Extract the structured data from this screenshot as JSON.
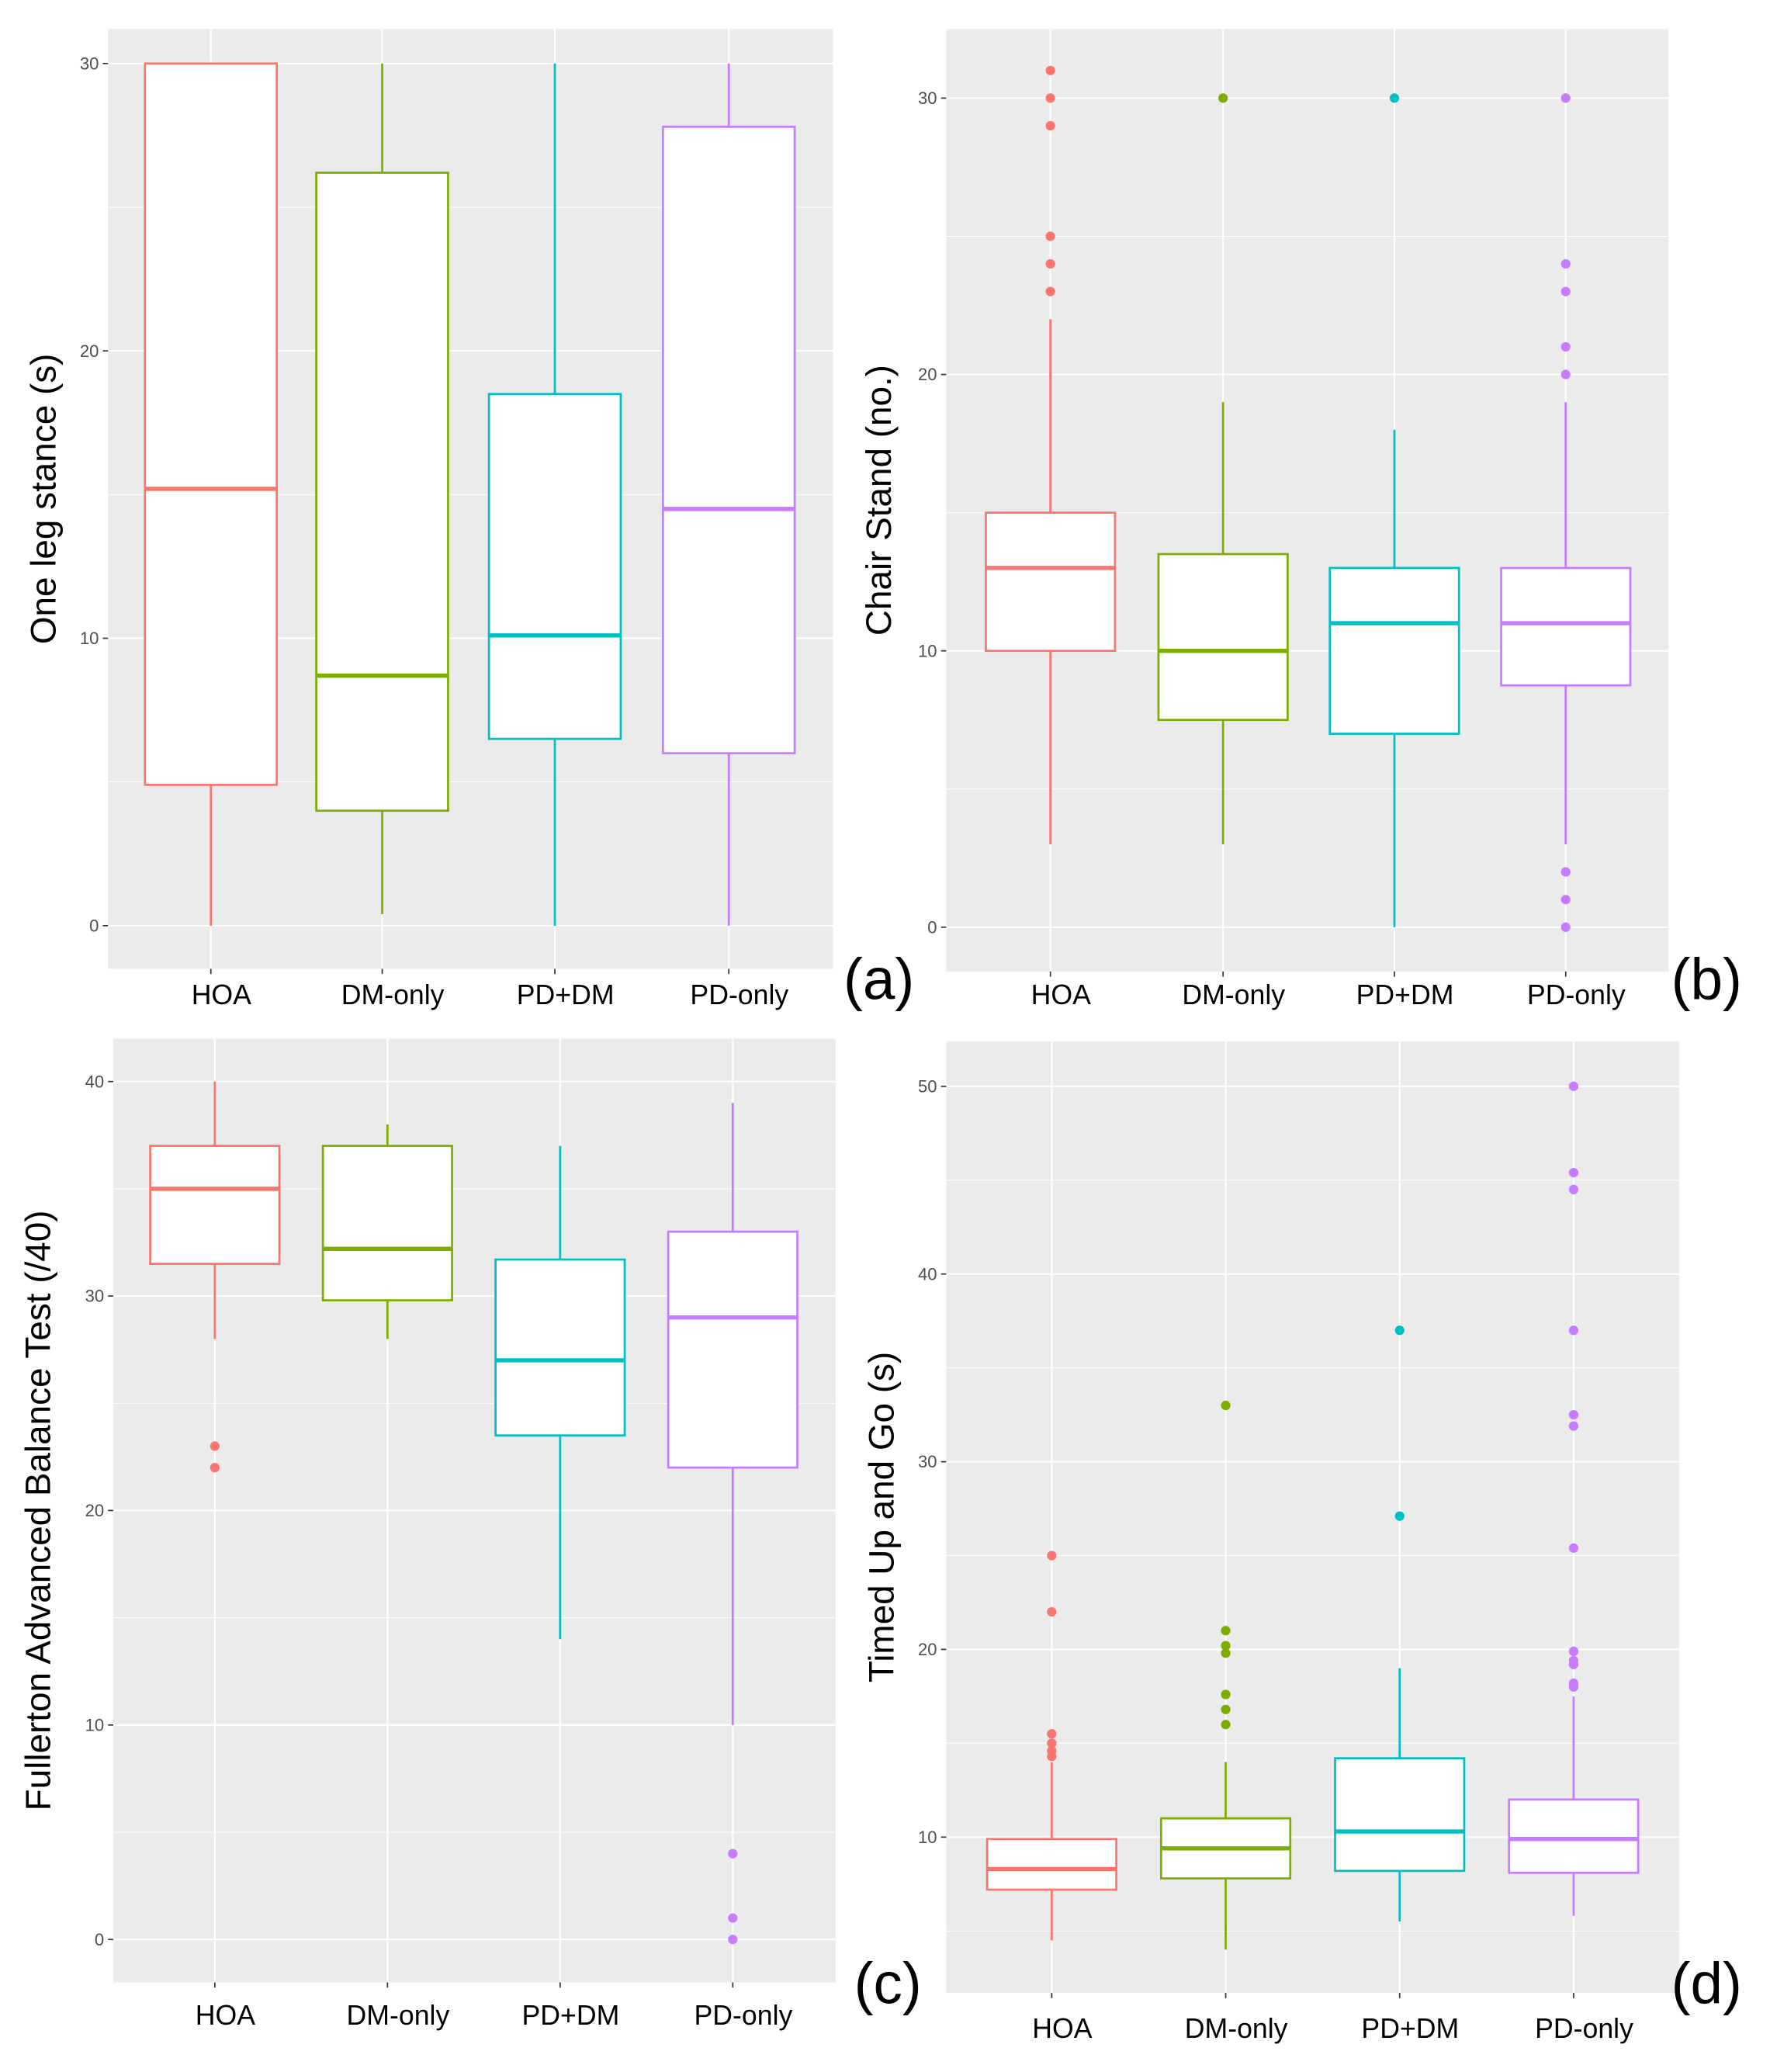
{
  "colors": {
    "HOA": "#F8766D",
    "DM-only": "#7CAE00",
    "PD+DM": "#00BFC4",
    "PD-only": "#C77CFF",
    "panel_bg": "#EBEBEB",
    "grid": "#FFFFFF"
  },
  "chart_data": [
    {
      "type": "box",
      "panel_label": "(a)",
      "title": "",
      "xlabel": "",
      "ylabel": "One leg stance (s)",
      "categories": [
        "HOA",
        "DM-only",
        "PD+DM",
        "PD-only"
      ],
      "ylim": [
        -1.5,
        31.2
      ],
      "yticks": [
        0,
        10,
        20,
        30
      ],
      "grid": true,
      "boxes": [
        {
          "min": 0,
          "q1": 4.9,
          "median": 15.2,
          "q3": 30,
          "max": 30,
          "outliers": []
        },
        {
          "min": 0.4,
          "q1": 4.0,
          "median": 8.7,
          "q3": 26.2,
          "max": 30,
          "outliers": []
        },
        {
          "min": 0,
          "q1": 6.5,
          "median": 10.1,
          "q3": 18.5,
          "max": 30,
          "outliers": []
        },
        {
          "min": 0,
          "q1": 6.0,
          "median": 14.5,
          "q3": 27.8,
          "max": 30,
          "outliers": []
        }
      ]
    },
    {
      "type": "box",
      "panel_label": "(b)",
      "title": "",
      "xlabel": "",
      "ylabel": "Chair Stand (no.)",
      "categories": [
        "HOA",
        "DM-only",
        "PD+DM",
        "PD-only"
      ],
      "ylim": [
        -1.6,
        32.5
      ],
      "yticks": [
        0,
        10,
        20,
        30
      ],
      "grid": true,
      "boxes": [
        {
          "min": 3,
          "q1": 10,
          "median": 13,
          "q3": 15,
          "max": 22,
          "outliers": [
            23,
            24,
            25,
            29,
            30,
            31
          ]
        },
        {
          "min": 3,
          "q1": 7.5,
          "median": 10,
          "q3": 13.5,
          "max": 19,
          "outliers": [
            30
          ]
        },
        {
          "min": 0,
          "q1": 7,
          "median": 11,
          "q3": 13,
          "max": 18,
          "outliers": [
            30
          ]
        },
        {
          "min": 3,
          "q1": 8.75,
          "median": 11,
          "q3": 13,
          "max": 19,
          "outliers": [
            0,
            1,
            2,
            20,
            21,
            23,
            24,
            30
          ]
        }
      ]
    },
    {
      "type": "box",
      "panel_label": "(c)",
      "title": "",
      "xlabel": "",
      "ylabel": "Fullerton Advanced Balance Test (/40)",
      "categories": [
        "HOA",
        "DM-only",
        "PD+DM",
        "PD-only"
      ],
      "ylim": [
        -2,
        42
      ],
      "yticks": [
        0,
        10,
        20,
        30,
        40
      ],
      "grid": true,
      "boxes": [
        {
          "min": 28,
          "q1": 31.5,
          "median": 35,
          "q3": 37,
          "max": 40,
          "outliers": [
            22,
            23
          ]
        },
        {
          "min": 28,
          "q1": 29.8,
          "median": 32.2,
          "q3": 37,
          "max": 38,
          "outliers": []
        },
        {
          "min": 14,
          "q1": 23.5,
          "median": 27,
          "q3": 31.7,
          "max": 37,
          "outliers": []
        },
        {
          "min": 10,
          "q1": 22,
          "median": 29,
          "q3": 33,
          "max": 39,
          "outliers": [
            0,
            1,
            4
          ]
        }
      ]
    },
    {
      "type": "box",
      "panel_label": "(d)",
      "title": "",
      "xlabel": "",
      "ylabel": "Timed Up and Go (s)",
      "categories": [
        "HOA",
        "DM-only",
        "PD+DM",
        "PD-only"
      ],
      "ylim": [
        1.7,
        52.4
      ],
      "yticks": [
        10,
        20,
        30,
        40,
        50
      ],
      "grid": true,
      "boxes": [
        {
          "min": 4.5,
          "q1": 7.2,
          "median": 8.3,
          "q3": 9.9,
          "max": 14,
          "outliers": [
            14.3,
            14.6,
            15,
            15.5,
            22,
            25
          ]
        },
        {
          "min": 4,
          "q1": 7.8,
          "median": 9.4,
          "q3": 11,
          "max": 14,
          "outliers": [
            16,
            16.8,
            17.6,
            19.8,
            20.2,
            21,
            33
          ]
        },
        {
          "min": 5.5,
          "q1": 8.2,
          "median": 10.3,
          "q3": 14.2,
          "max": 19,
          "outliers": [
            27.1,
            37
          ]
        },
        {
          "min": 5.8,
          "q1": 8.1,
          "median": 9.9,
          "q3": 12,
          "max": 17.5,
          "outliers": [
            18,
            18.2,
            19.2,
            19.4,
            19.9,
            25.4,
            31.9,
            32.5,
            37,
            44.5,
            45.4,
            50
          ]
        }
      ]
    }
  ]
}
